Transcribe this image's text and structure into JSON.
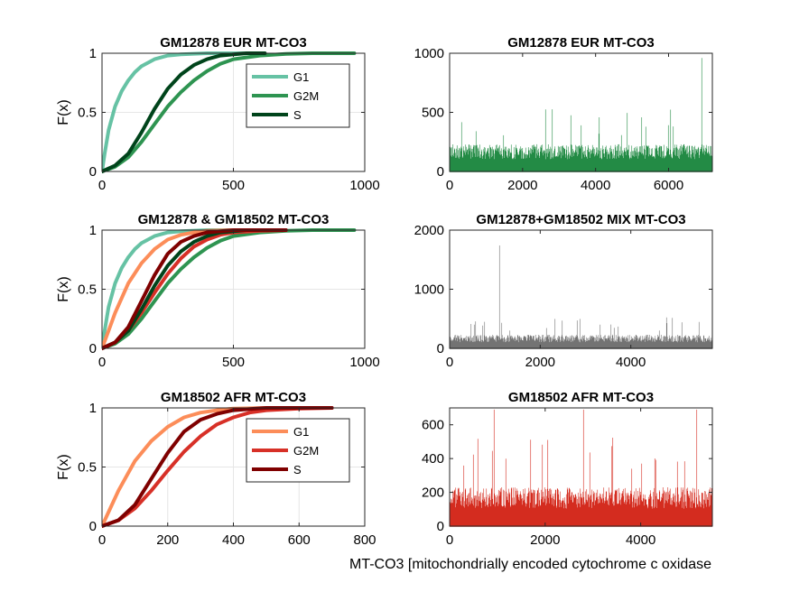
{
  "figure": {
    "xlabel": "MT-CO3 [mitochondrially encoded cytochrome c oxidase"
  },
  "colors": {
    "g1_green": "#66c2a4",
    "g2m_green": "#2e9451",
    "s_green": "#00441b",
    "g1_red": "#fc8d59",
    "g2m_red": "#d73027",
    "s_red": "#7f0000",
    "bar_green": "#238b45",
    "bar_gray": "#737373",
    "bar_red": "#d42c1f"
  },
  "chart_data": [
    {
      "type": "line",
      "title": "GM12878 EUR MT-CO3",
      "xlabel": "",
      "ylabel": "F(x)",
      "xlim": [
        0,
        1000
      ],
      "ylim": [
        0,
        1
      ],
      "xticks": [
        "0",
        "500",
        "1000"
      ],
      "yticks": [
        "0",
        "0.5",
        "1"
      ],
      "grid": true,
      "legend": "top-right",
      "series": [
        {
          "name": "G1",
          "color": "g1_green",
          "x": [
            0,
            10,
            25,
            50,
            75,
            100,
            125,
            150,
            200,
            250,
            300,
            400,
            500,
            600
          ],
          "y": [
            0,
            0.15,
            0.35,
            0.55,
            0.68,
            0.77,
            0.84,
            0.89,
            0.95,
            0.98,
            0.99,
            1,
            1,
            1
          ]
        },
        {
          "name": "G2M",
          "color": "g2m_green",
          "x": [
            0,
            50,
            100,
            150,
            200,
            250,
            300,
            350,
            400,
            450,
            500,
            600,
            700,
            800,
            960
          ],
          "y": [
            0,
            0.04,
            0.12,
            0.25,
            0.4,
            0.55,
            0.67,
            0.77,
            0.85,
            0.91,
            0.95,
            0.98,
            0.995,
            1,
            1
          ]
        },
        {
          "name": "S",
          "color": "s_green",
          "x": [
            0,
            50,
            100,
            150,
            200,
            250,
            300,
            350,
            400,
            450,
            500,
            550,
            620
          ],
          "y": [
            0,
            0.05,
            0.15,
            0.33,
            0.53,
            0.7,
            0.82,
            0.9,
            0.95,
            0.98,
            0.99,
            1,
            1
          ]
        }
      ]
    },
    {
      "type": "bar",
      "title": "GM12878 EUR MT-CO3",
      "xlim": [
        0,
        7200
      ],
      "ylim": [
        0,
        1000
      ],
      "xticks": [
        "0",
        "2000",
        "4000",
        "6000"
      ],
      "yticks": [
        "0",
        "500",
        "1000"
      ],
      "color": "bar_green",
      "n": 7200,
      "typical_value": 230,
      "max_value": 960
    },
    {
      "type": "line",
      "title": "GM12878 & GM18502 MT-CO3",
      "xlabel": "",
      "ylabel": "F(x)",
      "xlim": [
        0,
        1000
      ],
      "ylim": [
        0,
        1
      ],
      "xticks": [
        "0",
        "500",
        "1000"
      ],
      "yticks": [
        "0",
        "0.5",
        "1"
      ],
      "grid": true,
      "series": [
        {
          "color": "g1_green",
          "x": [
            0,
            10,
            25,
            50,
            75,
            100,
            125,
            150,
            200,
            250,
            300,
            400,
            500,
            600
          ],
          "y": [
            0,
            0.15,
            0.35,
            0.55,
            0.68,
            0.77,
            0.84,
            0.89,
            0.95,
            0.98,
            0.99,
            1,
            1,
            1
          ]
        },
        {
          "color": "g1_red",
          "x": [
            0,
            25,
            50,
            100,
            150,
            200,
            250,
            300,
            350,
            400,
            500,
            600
          ],
          "y": [
            0,
            0.15,
            0.3,
            0.55,
            0.72,
            0.84,
            0.92,
            0.96,
            0.98,
            0.995,
            1,
            1
          ]
        },
        {
          "color": "g2m_green",
          "x": [
            0,
            50,
            100,
            150,
            200,
            250,
            300,
            350,
            400,
            450,
            500,
            600,
            700,
            800,
            960
          ],
          "y": [
            0,
            0.04,
            0.12,
            0.25,
            0.4,
            0.55,
            0.67,
            0.77,
            0.85,
            0.91,
            0.95,
            0.98,
            0.995,
            1,
            1
          ]
        },
        {
          "color": "g2m_red",
          "x": [
            0,
            50,
            100,
            150,
            200,
            250,
            300,
            350,
            400,
            450,
            500,
            600,
            700
          ],
          "y": [
            0,
            0.05,
            0.15,
            0.3,
            0.47,
            0.63,
            0.76,
            0.86,
            0.92,
            0.96,
            0.98,
            0.995,
            1
          ]
        },
        {
          "color": "s_green",
          "x": [
            0,
            50,
            100,
            150,
            200,
            250,
            300,
            350,
            400,
            450,
            500,
            550,
            620
          ],
          "y": [
            0,
            0.05,
            0.15,
            0.33,
            0.53,
            0.7,
            0.82,
            0.9,
            0.95,
            0.98,
            0.99,
            1,
            1
          ]
        },
        {
          "color": "s_red",
          "x": [
            0,
            50,
            100,
            150,
            200,
            250,
            300,
            350,
            400,
            450,
            500,
            600,
            700
          ],
          "y": [
            0,
            0.05,
            0.18,
            0.4,
            0.62,
            0.8,
            0.9,
            0.95,
            0.98,
            0.99,
            1,
            1,
            1
          ]
        }
      ]
    },
    {
      "type": "bar",
      "title": "GM12878+GM18502 MIX MT-CO3",
      "xlim": [
        0,
        5800
      ],
      "ylim": [
        0,
        2000
      ],
      "xticks": [
        "0",
        "2000",
        "4000"
      ],
      "yticks": [
        "0",
        "1000",
        "2000"
      ],
      "color": "bar_gray",
      "n": 5800,
      "typical_value": 230,
      "max_value": 1740
    },
    {
      "type": "line",
      "title": "GM18502 AFR MT-CO3",
      "xlabel": "",
      "ylabel": "F(x)",
      "xlim": [
        0,
        800
      ],
      "ylim": [
        0,
        1
      ],
      "xticks": [
        "0",
        "200",
        "400",
        "600",
        "800"
      ],
      "yticks": [
        "0",
        "0.5",
        "1"
      ],
      "grid": true,
      "legend": "top-right",
      "series": [
        {
          "name": "G1",
          "color": "g1_red",
          "x": [
            0,
            25,
            50,
            100,
            150,
            200,
            250,
            300,
            350,
            400,
            500,
            600
          ],
          "y": [
            0,
            0.15,
            0.3,
            0.55,
            0.72,
            0.84,
            0.92,
            0.96,
            0.98,
            0.995,
            1,
            1
          ]
        },
        {
          "name": "G2M",
          "color": "g2m_red",
          "x": [
            0,
            50,
            100,
            150,
            200,
            250,
            300,
            350,
            400,
            450,
            500,
            600,
            700
          ],
          "y": [
            0,
            0.05,
            0.15,
            0.3,
            0.47,
            0.63,
            0.76,
            0.86,
            0.92,
            0.96,
            0.98,
            0.995,
            1
          ]
        },
        {
          "name": "S",
          "color": "s_red",
          "x": [
            0,
            50,
            100,
            150,
            200,
            250,
            300,
            350,
            400,
            450,
            500,
            600,
            700
          ],
          "y": [
            0,
            0.05,
            0.18,
            0.4,
            0.62,
            0.8,
            0.9,
            0.95,
            0.98,
            0.99,
            1,
            1,
            1
          ]
        }
      ]
    },
    {
      "type": "bar",
      "title": "GM18502 AFR MT-CO3",
      "xlim": [
        0,
        5500
      ],
      "ylim": [
        0,
        700
      ],
      "xticks": [
        "0",
        "2000",
        "4000"
      ],
      "yticks": [
        "0",
        "200",
        "400",
        "600"
      ],
      "color": "bar_red",
      "n": 5500,
      "typical_value": 230,
      "max_value": 690
    }
  ]
}
